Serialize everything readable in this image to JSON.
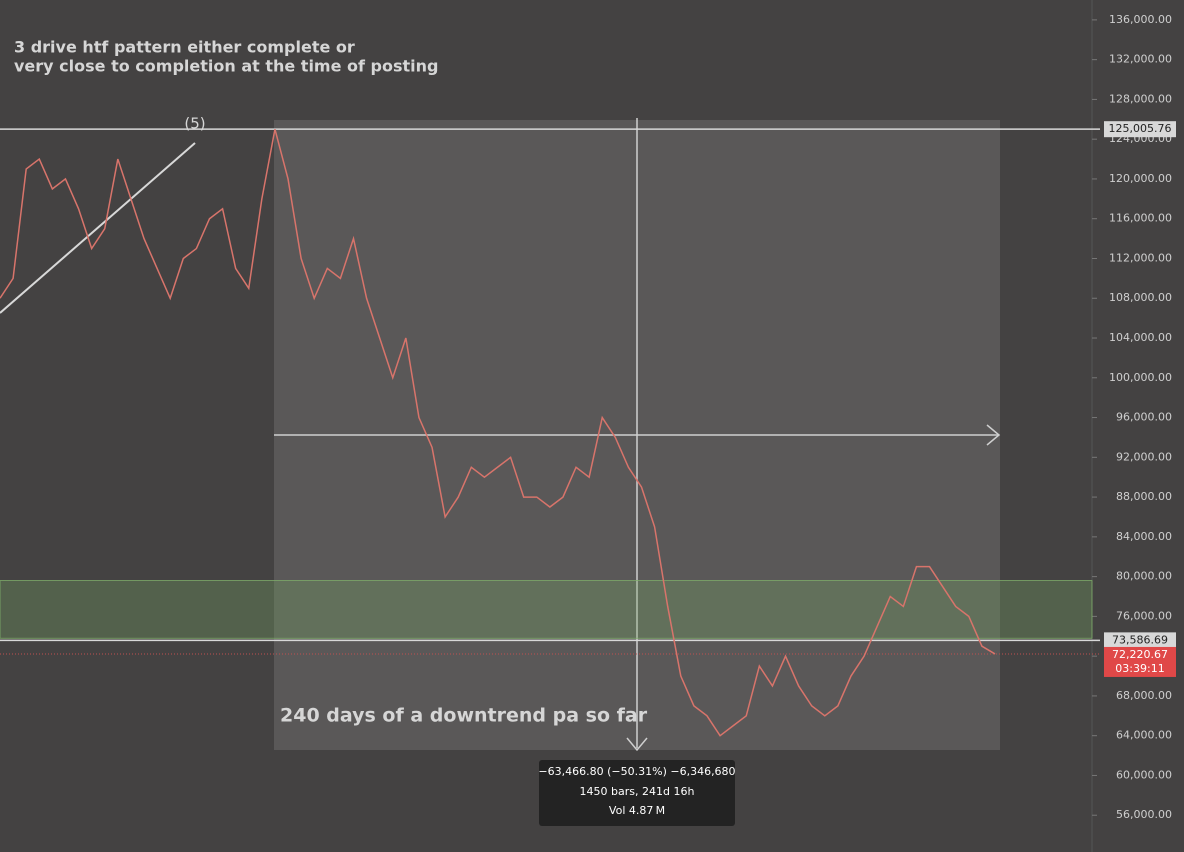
{
  "chart_data": {
    "type": "line",
    "annotation_lines": [
      "3 drive htf pattern either complete or",
      "very close to completion at the time of posting"
    ],
    "wave_label": "(5)",
    "range_note": "240 days of a downtrend pa so far",
    "color": "#d8746b",
    "values": [
      108000,
      110000,
      121000,
      122000,
      119000,
      120000,
      117000,
      113000,
      115000,
      122000,
      118000,
      114000,
      111000,
      108000,
      112000,
      113000,
      116000,
      117000,
      111000,
      109000,
      118000,
      125000,
      120000,
      112000,
      108000,
      111000,
      110000,
      114000,
      108000,
      104000,
      100000,
      104000,
      96000,
      93000,
      86000,
      88000,
      91000,
      90000,
      91000,
      92000,
      88000,
      88000,
      87000,
      88000,
      91000,
      90000,
      96000,
      94000,
      91000,
      89000,
      85000,
      77000,
      70000,
      67000,
      66000,
      64000,
      65000,
      66000,
      71000,
      69000,
      72000,
      69000,
      67000,
      66000,
      67000,
      70000,
      72000,
      75000,
      78000,
      77000,
      81000,
      81000,
      79000,
      77000,
      76000,
      73000,
      72220.67
    ],
    "ylim": [
      52300,
      138000
    ],
    "yticks": [
      {
        "value": 56000,
        "label": "56,000.00"
      },
      {
        "value": 60000,
        "label": "60,000.00"
      },
      {
        "value": 64000,
        "label": "64,000.00"
      },
      {
        "value": 68000,
        "label": "68,000.00"
      },
      {
        "value": 72000,
        "label": "72,000.00"
      },
      {
        "value": 76000,
        "label": "76,000.00"
      },
      {
        "value": 80000,
        "label": "80,000.00"
      },
      {
        "value": 84000,
        "label": "84,000.00"
      },
      {
        "value": 88000,
        "label": "88,000.00"
      },
      {
        "value": 92000,
        "label": "92,000.00"
      },
      {
        "value": 96000,
        "label": "96,000.00"
      },
      {
        "value": 100000,
        "label": "100,000.00"
      },
      {
        "value": 104000,
        "label": "104,000.00"
      },
      {
        "value": 108000,
        "label": "108,000.00"
      },
      {
        "value": 112000,
        "label": "112,000.00"
      },
      {
        "value": 116000,
        "label": "116,000.00"
      },
      {
        "value": 120000,
        "label": "120,000.00"
      },
      {
        "value": 124000,
        "label": "124,000.00"
      },
      {
        "value": 128000,
        "label": "128,000.00"
      },
      {
        "value": 132000,
        "label": "132,000.00"
      },
      {
        "value": 136000,
        "label": "136,000.00"
      }
    ],
    "zone": [
      73800,
      79600
    ],
    "high_line": {
      "value": 125005.76,
      "label": "125,005.76"
    },
    "level_line": {
      "value": 73586.69,
      "label": "73,586.69"
    },
    "last_price": {
      "value": 72220.67,
      "label": "72,220.67"
    },
    "countdown": "03:39:11",
    "measure": [
      "−63,466.80 (−50.31%) −6,346,680",
      "1450 bars, 241d 16h",
      "Vol 4.87 M"
    ]
  }
}
